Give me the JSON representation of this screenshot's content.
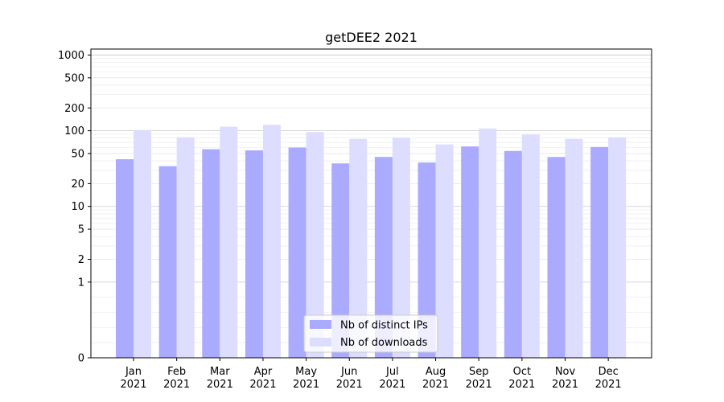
{
  "chart_data": {
    "type": "bar",
    "title": "getDEE2 2021",
    "xlabel": "",
    "ylabel": "",
    "yscale": "symlog",
    "ylim": [
      0,
      1200
    ],
    "grid": true,
    "legend_position": "bottom-center",
    "categories": [
      {
        "month": "Jan",
        "year": "2021"
      },
      {
        "month": "Feb",
        "year": "2021"
      },
      {
        "month": "Mar",
        "year": "2021"
      },
      {
        "month": "Apr",
        "year": "2021"
      },
      {
        "month": "May",
        "year": "2021"
      },
      {
        "month": "Jun",
        "year": "2021"
      },
      {
        "month": "Jul",
        "year": "2021"
      },
      {
        "month": "Aug",
        "year": "2021"
      },
      {
        "month": "Sep",
        "year": "2021"
      },
      {
        "month": "Oct",
        "year": "2021"
      },
      {
        "month": "Nov",
        "year": "2021"
      },
      {
        "month": "Dec",
        "year": "2021"
      }
    ],
    "yticks": [
      0,
      1,
      2,
      5,
      10,
      20,
      50,
      100,
      200,
      500,
      1000
    ],
    "series": [
      {
        "name": "Nb of distinct IPs",
        "color": "#aaaaff",
        "values": [
          42,
          34,
          57,
          55,
          60,
          37,
          45,
          38,
          62,
          54,
          45,
          61
        ]
      },
      {
        "name": "Nb of downloads",
        "color": "#ddddff",
        "values": [
          102,
          82,
          113,
          120,
          96,
          78,
          81,
          66,
          107,
          89,
          78,
          82
        ]
      }
    ]
  }
}
